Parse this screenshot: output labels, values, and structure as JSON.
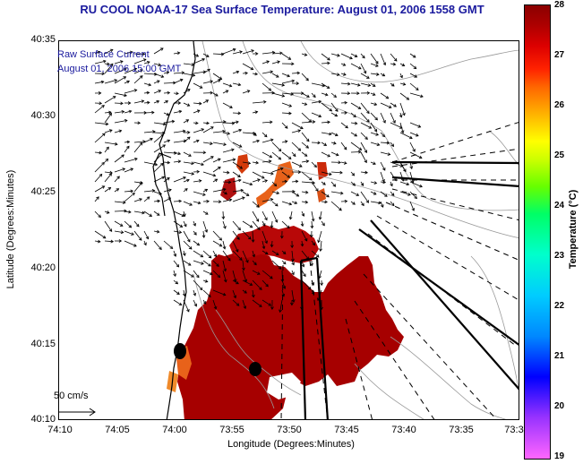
{
  "title": "RU COOL  NOAA-17  Sea Surface Temperature:  August 01, 2006 1558 GMT",
  "overlay": {
    "line1": "Raw Surface Current",
    "line2": "August 01, 2006 15:00 GMT"
  },
  "scale_label": "50 cm/s",
  "axes": {
    "xlabel": "Longitude (Degrees:Minutes)",
    "ylabel": "Latitude (Degrees:Minutes)",
    "xticks": [
      "74:10",
      "74:05",
      "74:00",
      "73:55",
      "73:50",
      "73:45",
      "73:40",
      "73:35",
      "73:3"
    ],
    "yticks": [
      "40:35",
      "40:30",
      "40:25",
      "40:20",
      "40:15",
      "40:10"
    ]
  },
  "colorbar": {
    "label": "Temperature (°C)",
    "ticks": [
      "28",
      "27",
      "26",
      "25",
      "24",
      "23",
      "22",
      "21",
      "20",
      "19"
    ],
    "min": 19,
    "max": 28
  },
  "colors": {
    "title": "#1a1a9e",
    "sst_warm": "#a30000",
    "sst_orange": "#e06a1a"
  }
}
